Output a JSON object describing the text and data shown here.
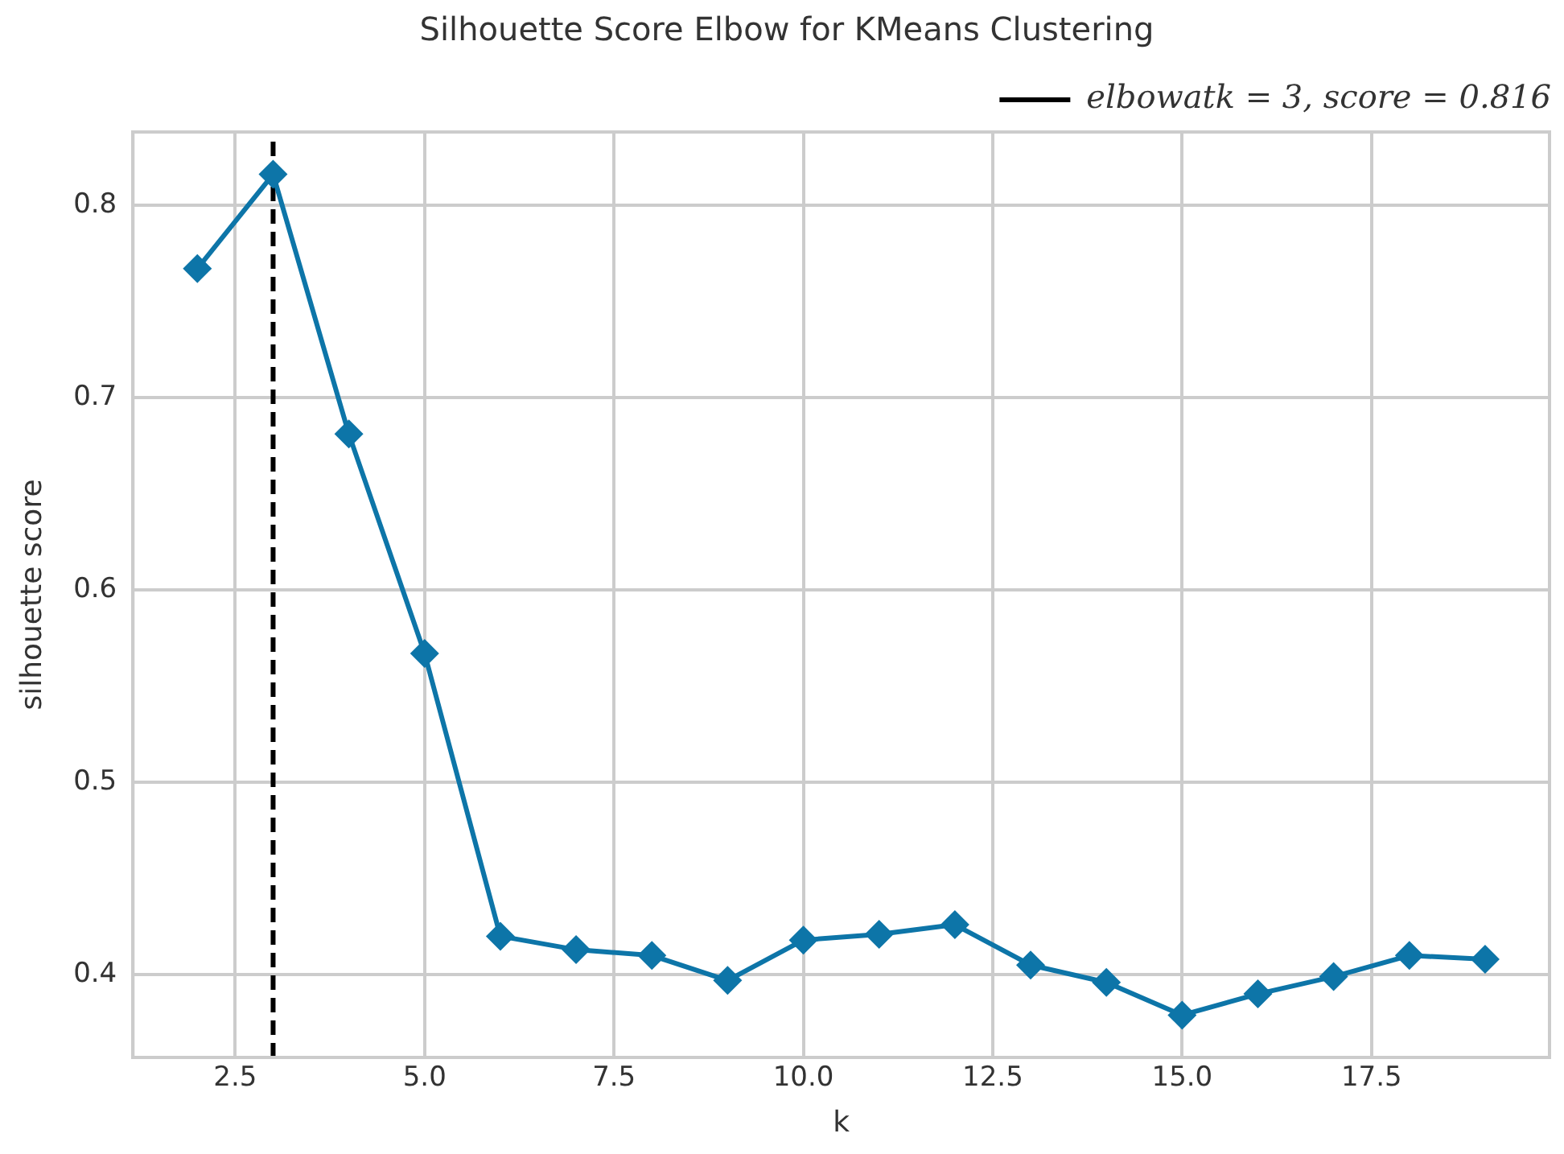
{
  "chart_data": {
    "type": "line",
    "title": "Silhouette Score Elbow for KMeans Clustering",
    "xlabel": "k",
    "ylabel": "silhouette score",
    "x": [
      2,
      3,
      4,
      5,
      6,
      7,
      8,
      9,
      10,
      11,
      12,
      13,
      14,
      15,
      16,
      17,
      18,
      19
    ],
    "series": [
      {
        "color": "#0d75a8",
        "values": [
          0.767,
          0.816,
          0.681,
          0.567,
          0.42,
          0.413,
          0.41,
          0.397,
          0.418,
          0.421,
          0.426,
          0.405,
          0.396,
          0.379,
          0.39,
          0.399,
          0.41,
          0.408
        ]
      }
    ],
    "marker": "diamond",
    "line_style": "solid",
    "xlim": [
      1.15,
      19.85
    ],
    "ylim": [
      0.357,
      0.838
    ],
    "xticks": [
      2.5,
      {
        "value": 5,
        "label": "5.0"
      },
      7.5,
      {
        "value": 10,
        "label": "10.0"
      },
      12.5,
      {
        "value": 15,
        "label": "15.0"
      },
      17.5
    ],
    "yticks": [
      0.4,
      0.5,
      0.6,
      0.7,
      0.8
    ],
    "ref_lines": [
      {
        "axis": "x",
        "value": 3,
        "label": "elbowatk = 3, score = 0.816",
        "color": "#000000",
        "line_style": "dashed"
      }
    ],
    "grid": true,
    "legend": "top right"
  }
}
